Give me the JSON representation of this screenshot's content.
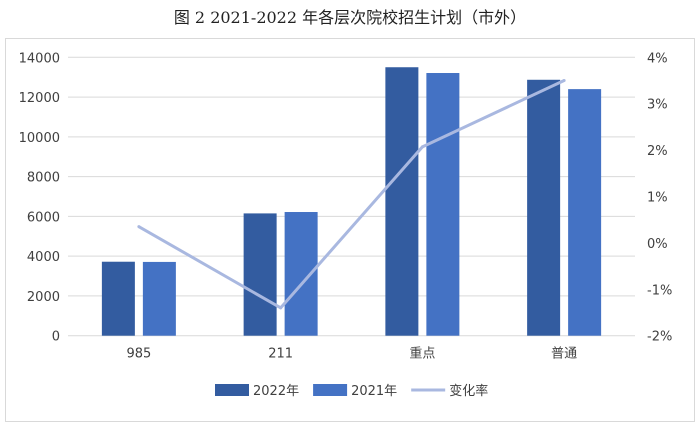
{
  "title": "图 2 2021-2022 年各层次院校招生计划（市外）",
  "chart_data": {
    "type": "bar",
    "title": "图 2 2021-2022 年各层次院校招生计划（市外）",
    "categories": [
      "985",
      "211",
      "重点",
      "普通"
    ],
    "series": [
      {
        "name": "2022年",
        "type": "bar",
        "axis": "left",
        "color": "#335ca0",
        "values": [
          3720,
          6150,
          13500,
          12870
        ]
      },
      {
        "name": "2021年",
        "type": "bar",
        "axis": "left",
        "color": "#4472c4",
        "values": [
          3710,
          6220,
          13210,
          12400
        ]
      },
      {
        "name": "变化率",
        "type": "line",
        "axis": "right",
        "color": "#a9b8e0",
        "values": [
          0.35,
          -1.4,
          2.07,
          3.5
        ]
      }
    ],
    "ylim": [
      0,
      14000
    ],
    "yticks": [
      "0",
      "2000",
      "4000",
      "6000",
      "8000",
      "10000",
      "12000",
      "14000"
    ],
    "y2lim": [
      -2,
      4
    ],
    "y2ticks": [
      "-2%",
      "-1%",
      "0%",
      "1%",
      "2%",
      "3%",
      "4%"
    ],
    "grid": true,
    "legend": "bottom"
  }
}
